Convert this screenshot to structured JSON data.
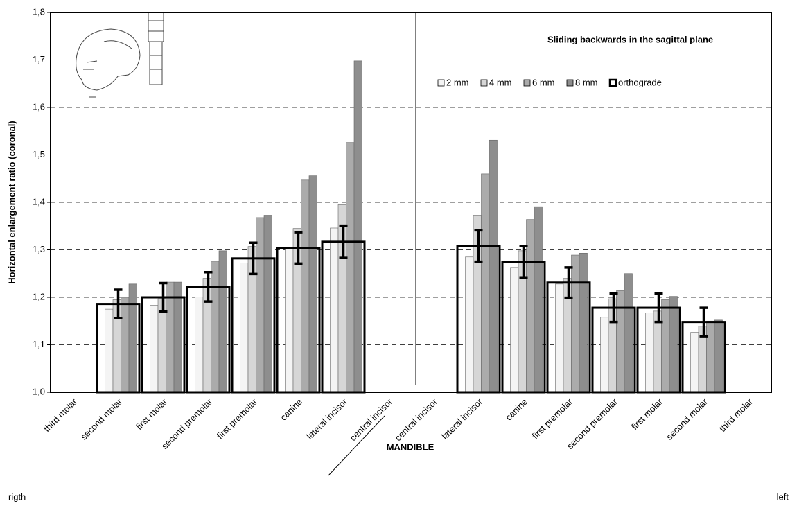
{
  "chart_data": {
    "type": "bar",
    "title": "Sliding backwards in the sagittal plane",
    "x_label": "MANDIBLE",
    "y_label": "Horizontal enlargement ratio (coronal)",
    "side_labels": [
      "rigth",
      "left"
    ],
    "categories": [
      "third molar",
      "second molar",
      "first molar",
      "second premolar",
      "first premolar",
      "canine",
      "lateral incisor",
      "central incisor",
      "central incisor",
      "lateral incisor",
      "canine",
      "first premolar",
      "second premolar",
      "first molar",
      "second molar",
      "third molar"
    ],
    "series": [
      {
        "name": "2 mm",
        "color": "#f4f4f4",
        "values": [
          null,
          1.175,
          1.183,
          1.201,
          1.272,
          1.304,
          1.346,
          null,
          null,
          1.285,
          1.263,
          1.228,
          1.158,
          1.167,
          1.126,
          null
        ]
      },
      {
        "name": "4 mm",
        "color": "#d6d6d6",
        "values": [
          null,
          1.195,
          1.197,
          1.24,
          1.307,
          1.345,
          1.395,
          null,
          null,
          1.373,
          1.298,
          1.24,
          1.197,
          1.171,
          1.139,
          null
        ]
      },
      {
        "name": "6 mm",
        "color": "#ababab",
        "values": [
          null,
          1.2,
          1.232,
          1.276,
          1.368,
          1.447,
          1.526,
          null,
          null,
          1.46,
          1.364,
          1.289,
          1.214,
          1.195,
          1.15,
          null
        ]
      },
      {
        "name": "8 mm",
        "color": "#8e8e8e",
        "values": [
          null,
          1.228,
          1.232,
          1.298,
          1.373,
          1.456,
          1.698,
          null,
          null,
          1.531,
          1.391,
          1.293,
          1.25,
          1.202,
          1.152,
          null
        ]
      },
      {
        "name": "orthograde",
        "color": "#000000",
        "values": [
          null,
          1.186,
          1.2,
          1.222,
          1.282,
          1.304,
          1.317,
          null,
          null,
          1.308,
          1.275,
          1.231,
          1.178,
          1.178,
          1.148,
          null
        ],
        "errors": [
          null,
          0.03,
          0.03,
          0.031,
          0.033,
          0.033,
          0.034,
          null,
          null,
          0.033,
          0.033,
          0.032,
          0.03,
          0.03,
          0.03,
          null
        ]
      }
    ],
    "ylim": [
      1.0,
      1.8
    ],
    "yticks": [
      {
        "value": 1.0,
        "label": "1,0"
      },
      {
        "value": 1.1,
        "label": "1,1"
      },
      {
        "value": 1.2,
        "label": "1,2"
      },
      {
        "value": 1.3,
        "label": "1,3"
      },
      {
        "value": 1.4,
        "label": "1,4"
      },
      {
        "value": 1.5,
        "label": "1,5"
      },
      {
        "value": 1.6,
        "label": "1,6"
      },
      {
        "value": 1.7,
        "label": "1,7"
      },
      {
        "value": 1.8,
        "label": "1,8"
      }
    ],
    "grid": true,
    "legend": "top-right"
  }
}
